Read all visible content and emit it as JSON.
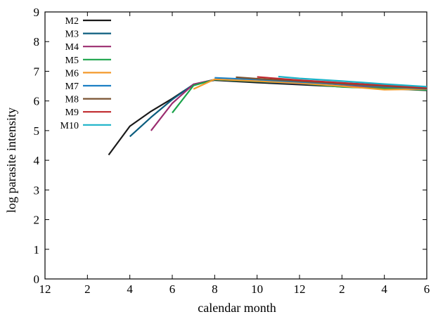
{
  "chart_data": {
    "type": "line",
    "xlabel": "calendar month",
    "ylabel": "log parasite intensity",
    "ylim": [
      0,
      9
    ],
    "xlim": [
      0,
      18
    ],
    "x_tick_labels": [
      "12",
      "2",
      "4",
      "6",
      "8",
      "10",
      "12",
      "2",
      "4",
      "6"
    ],
    "y_tick_labels": [
      "0",
      "1",
      "2",
      "3",
      "4",
      "5",
      "6",
      "7",
      "8",
      "9"
    ],
    "legend_position": "top-left",
    "series": [
      {
        "name": "M2",
        "color": "#1a1a1a",
        "points": [
          [
            3,
            4.18
          ],
          [
            4,
            5.15
          ],
          [
            5,
            5.65
          ],
          [
            6,
            6.08
          ],
          [
            7,
            6.55
          ],
          [
            8,
            6.7
          ],
          [
            10,
            6.62
          ],
          [
            12,
            6.55
          ],
          [
            14,
            6.48
          ],
          [
            16,
            6.42
          ],
          [
            18,
            6.36
          ]
        ]
      },
      {
        "name": "M3",
        "color": "#0b5d7e",
        "points": [
          [
            4,
            4.8
          ],
          [
            5,
            5.45
          ],
          [
            6,
            6.05
          ],
          [
            7,
            6.56
          ],
          [
            8,
            6.72
          ],
          [
            10,
            6.65
          ],
          [
            12,
            6.58
          ],
          [
            14,
            6.5
          ],
          [
            16,
            6.44
          ],
          [
            18,
            6.38
          ]
        ]
      },
      {
        "name": "M4",
        "color": "#9b2c6f",
        "points": [
          [
            5,
            5.0
          ],
          [
            6,
            5.92
          ],
          [
            7,
            6.56
          ],
          [
            8,
            6.72
          ],
          [
            10,
            6.66
          ],
          [
            12,
            6.59
          ],
          [
            14,
            6.51
          ],
          [
            16,
            6.45
          ],
          [
            18,
            6.39
          ]
        ]
      },
      {
        "name": "M5",
        "color": "#1aa34a",
        "points": [
          [
            6,
            5.6
          ],
          [
            7,
            6.52
          ],
          [
            8,
            6.72
          ],
          [
            10,
            6.66
          ],
          [
            12,
            6.6
          ],
          [
            14,
            6.47
          ],
          [
            16,
            6.42
          ],
          [
            18,
            6.37
          ]
        ]
      },
      {
        "name": "M6",
        "color": "#f39a2b",
        "points": [
          [
            7,
            6.4
          ],
          [
            8,
            6.73
          ],
          [
            10,
            6.67
          ],
          [
            12,
            6.6
          ],
          [
            14,
            6.5
          ],
          [
            16,
            6.38
          ],
          [
            18,
            6.4
          ]
        ]
      },
      {
        "name": "M7",
        "color": "#1c7fc4",
        "points": [
          [
            8,
            6.78
          ],
          [
            10,
            6.72
          ],
          [
            12,
            6.64
          ],
          [
            14,
            6.56
          ],
          [
            16,
            6.48
          ],
          [
            18,
            6.41
          ]
        ]
      },
      {
        "name": "M8",
        "color": "#7a5230",
        "points": [
          [
            9,
            6.8
          ],
          [
            10,
            6.75
          ],
          [
            12,
            6.67
          ],
          [
            14,
            6.58
          ],
          [
            16,
            6.5
          ],
          [
            18,
            6.42
          ]
        ]
      },
      {
        "name": "M9",
        "color": "#c0282d",
        "points": [
          [
            10,
            6.81
          ],
          [
            12,
            6.7
          ],
          [
            14,
            6.61
          ],
          [
            16,
            6.53
          ],
          [
            18,
            6.44
          ]
        ]
      },
      {
        "name": "M10",
        "color": "#1ab2c8",
        "points": [
          [
            11,
            6.82
          ],
          [
            12,
            6.76
          ],
          [
            14,
            6.67
          ],
          [
            16,
            6.57
          ],
          [
            18,
            6.48
          ]
        ]
      }
    ]
  }
}
